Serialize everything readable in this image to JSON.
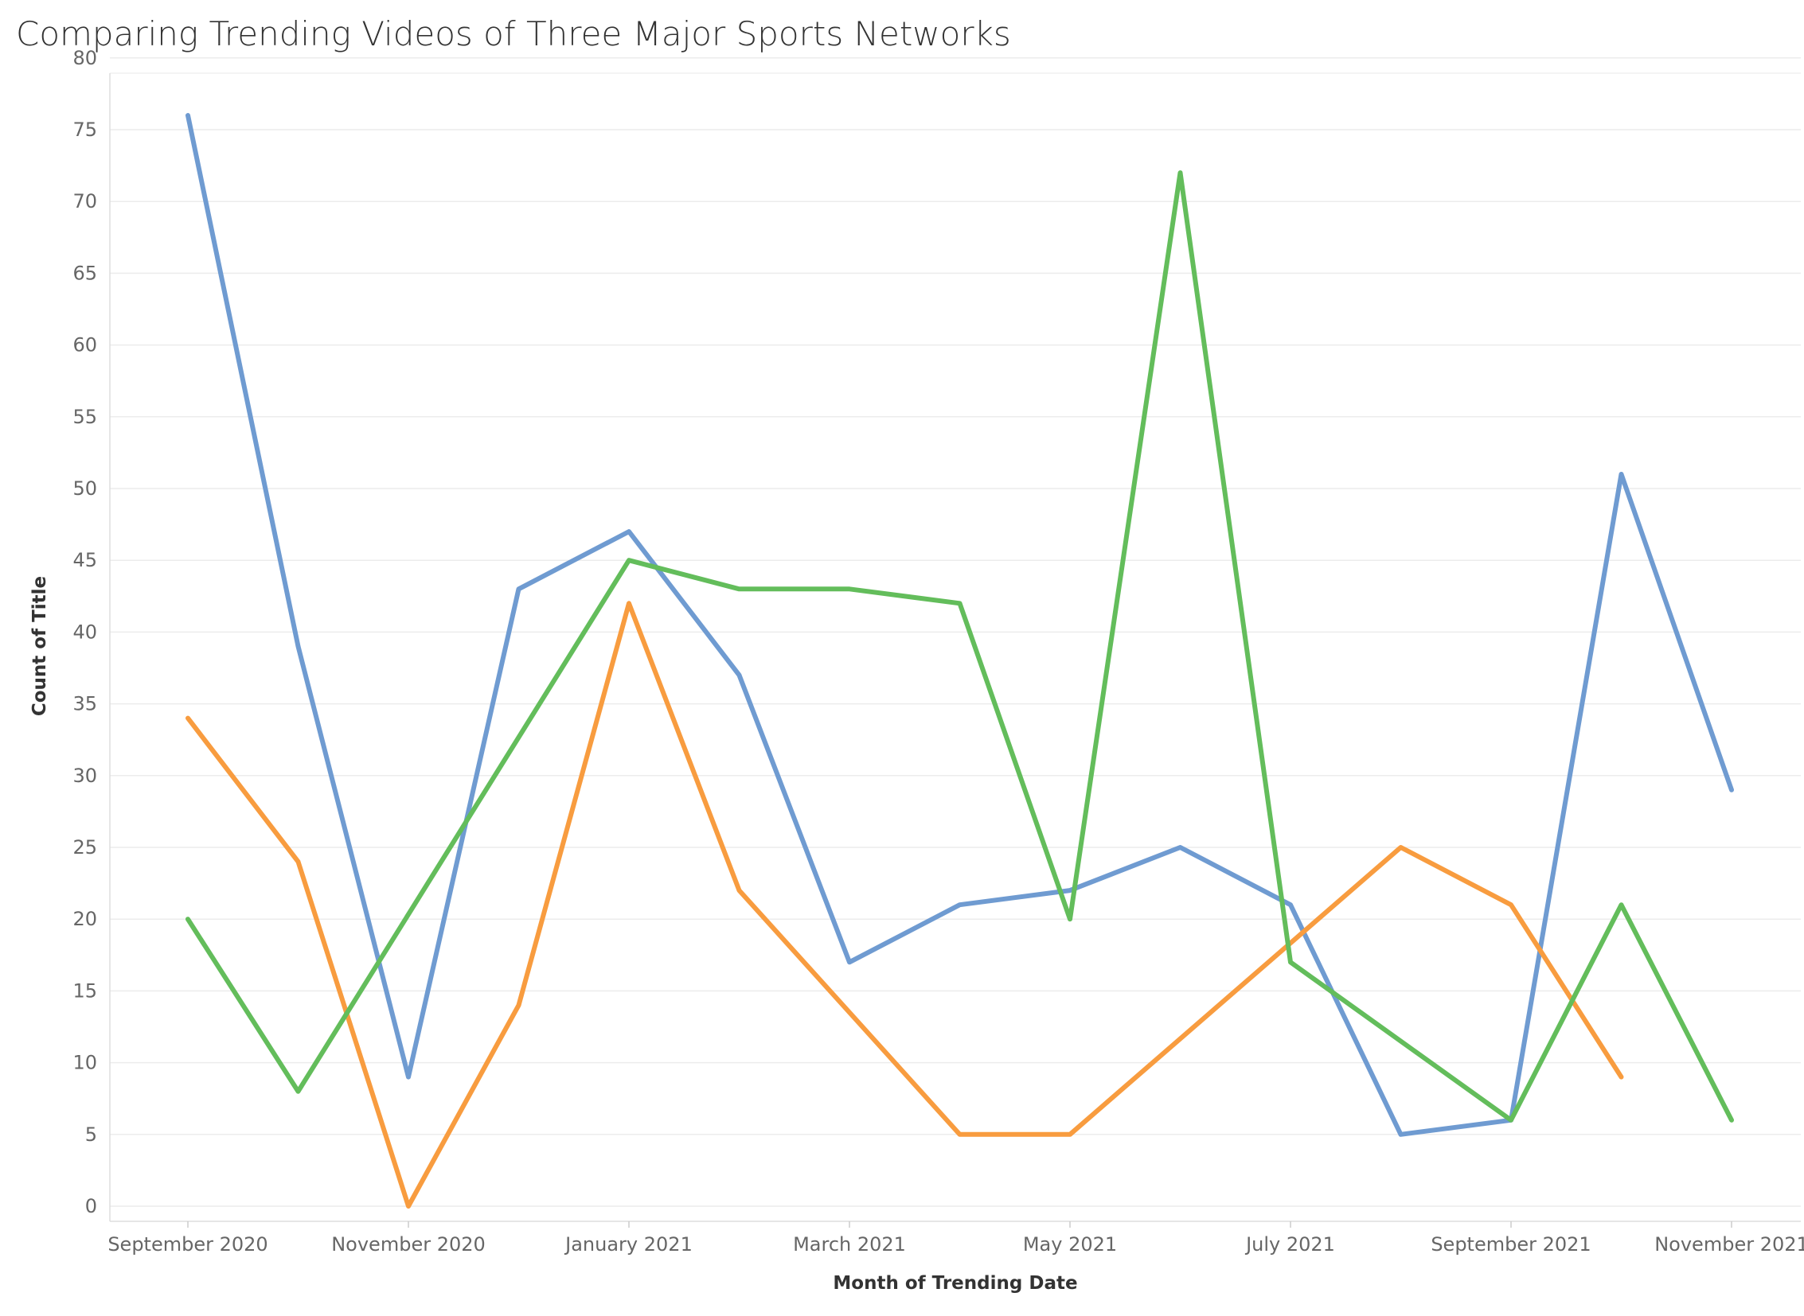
{
  "chart_data": {
    "type": "line",
    "title": "Comparing Trending Videos of Three Major Sports Networks",
    "xlabel": "Month of Trending Date",
    "ylabel": "Count of Title",
    "x": [
      "2020-09",
      "2020-10",
      "2020-11",
      "2020-12",
      "2021-01",
      "2021-02",
      "2021-03",
      "2021-04",
      "2021-05",
      "2021-06",
      "2021-07",
      "2021-08",
      "2021-09",
      "2021-10",
      "2021-11"
    ],
    "x_ticks": [
      {
        "x": "2020-09",
        "label": "September 2020"
      },
      {
        "x": "2020-11",
        "label": "November 2020"
      },
      {
        "x": "2021-01",
        "label": "January 2021"
      },
      {
        "x": "2021-03",
        "label": "March 2021"
      },
      {
        "x": "2021-05",
        "label": "May 2021"
      },
      {
        "x": "2021-07",
        "label": "July 2021"
      },
      {
        "x": "2021-09",
        "label": "September 2021"
      },
      {
        "x": "2021-11",
        "label": "November 2021"
      }
    ],
    "y_ticks": [
      0,
      5,
      10,
      15,
      20,
      25,
      30,
      35,
      40,
      45,
      50,
      55,
      60,
      65,
      70,
      75,
      80
    ],
    "ylim": [
      0,
      80
    ],
    "grid": true,
    "series": [
      {
        "color": "#6f9bd1",
        "values": [
          76,
          39,
          9,
          43,
          47,
          37,
          17,
          21,
          22,
          25,
          21,
          5,
          6,
          51,
          29
        ]
      },
      {
        "color": "#f89c3f",
        "values": [
          34,
          24,
          0,
          14,
          42,
          22,
          null,
          5,
          5,
          null,
          null,
          25,
          21,
          9,
          null
        ]
      },
      {
        "color": "#63bd5b",
        "values": [
          20,
          8,
          null,
          null,
          45,
          43,
          43,
          42,
          20,
          72,
          17,
          null,
          6,
          21,
          6
        ]
      }
    ]
  }
}
